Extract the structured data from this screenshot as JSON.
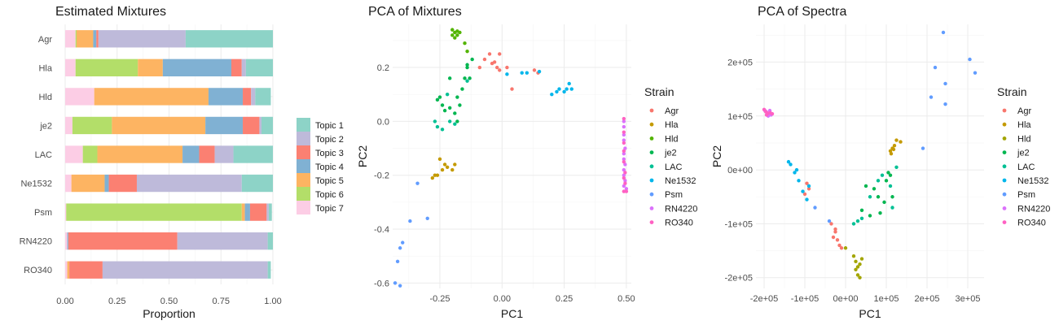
{
  "chart_data": [
    {
      "type": "bar",
      "orientation": "horizontal",
      "stacked": true,
      "title": "Estimated Mixtures",
      "xlabel": "Proportion",
      "ylabel": "",
      "xlim": [
        0,
        1
      ],
      "xticks": [
        "0.00",
        "0.25",
        "0.50",
        "0.75",
        "1.00"
      ],
      "categories": [
        "Agr",
        "Hla",
        "Hld",
        "je2",
        "LAC",
        "Ne1532",
        "Psm",
        "RN4220",
        "RO340"
      ],
      "legend_position": "right",
      "series": [
        {
          "name": "Topic 7",
          "color": "#FCCDE5",
          "values": [
            0.05,
            0.05,
            0.14,
            0.035,
            0.085,
            0.03,
            0.005,
            0.01,
            0.01
          ]
        },
        {
          "name": "Topic 6",
          "color": "#B3DE69",
          "values": [
            0.005,
            0.3,
            0.0,
            0.19,
            0.07,
            0.0,
            0.845,
            0.0,
            0.0
          ]
        },
        {
          "name": "Topic 5",
          "color": "#FDB462",
          "values": [
            0.08,
            0.12,
            0.55,
            0.45,
            0.41,
            0.16,
            0.015,
            0.0,
            0.01
          ]
        },
        {
          "name": "Topic 4",
          "color": "#80B1D3",
          "values": [
            0.015,
            0.33,
            0.165,
            0.18,
            0.08,
            0.02,
            0.025,
            0.005,
            0.0
          ]
        },
        {
          "name": "Topic 3",
          "color": "#FB8072",
          "values": [
            0.01,
            0.05,
            0.04,
            0.08,
            0.075,
            0.135,
            0.08,
            0.525,
            0.16
          ]
        },
        {
          "name": "Topic 2",
          "color": "#BEBADA",
          "values": [
            0.42,
            0.02,
            0.02,
            0.01,
            0.09,
            0.505,
            0.01,
            0.435,
            0.795
          ]
        },
        {
          "name": "Topic 1",
          "color": "#8DD3C7",
          "values": [
            0.42,
            0.13,
            0.075,
            0.055,
            0.19,
            0.15,
            0.015,
            0.025,
            0.015
          ]
        }
      ],
      "legend_order": [
        "Topic 1",
        "Topic 2",
        "Topic 3",
        "Topic 4",
        "Topic 5",
        "Topic 6",
        "Topic 7"
      ]
    },
    {
      "type": "scatter",
      "title": "PCA of Mixtures",
      "xlabel": "PC1",
      "ylabel": "PC2",
      "xlim": [
        -0.44,
        0.52
      ],
      "ylim": [
        -0.62,
        0.36
      ],
      "xticks": [
        -0.25,
        0.0,
        0.25,
        0.5
      ],
      "xtick_labels": [
        "-0.25",
        "0.00",
        "0.25",
        "0.50"
      ],
      "yticks": [
        -0.6,
        -0.4,
        -0.2,
        0.0,
        0.2
      ],
      "ytick_labels": [
        "-0.6",
        "-0.4",
        "-0.2",
        "0.0",
        "0.2"
      ],
      "grid": true,
      "legend_title": "Strain",
      "legend_position": "right",
      "series": [
        {
          "name": "Agr",
          "color": "#F8766D",
          "points": [
            [
              -0.09,
              0.2
            ],
            [
              -0.07,
              0.23
            ],
            [
              -0.05,
              0.25
            ],
            [
              -0.03,
              0.22
            ],
            [
              -0.02,
              0.2
            ],
            [
              -0.01,
              0.25
            ],
            [
              -0.04,
              0.215
            ],
            [
              0.02,
              0.2
            ],
            [
              0.04,
              0.12
            ],
            [
              0.13,
              0.19
            ],
            [
              0.145,
              0.18
            ],
            [
              -0.01,
              0.19
            ]
          ]
        },
        {
          "name": "Hla",
          "color": "#C49A00",
          "points": [
            [
              -0.19,
              -0.16
            ],
            [
              -0.22,
              -0.17
            ],
            [
              -0.24,
              -0.18
            ],
            [
              -0.25,
              -0.14
            ],
            [
              -0.27,
              -0.2
            ],
            [
              -0.28,
              -0.21
            ],
            [
              -0.23,
              -0.16
            ],
            [
              -0.2,
              -0.18
            ],
            [
              -0.26,
              -0.2
            ]
          ]
        },
        {
          "name": "Hld",
          "color": "#53B400",
          "points": [
            [
              -0.2,
              0.34
            ],
            [
              -0.19,
              0.33
            ],
            [
              -0.18,
              0.32
            ],
            [
              -0.17,
              0.33
            ],
            [
              -0.2,
              0.32
            ],
            [
              -0.19,
              0.31
            ],
            [
              -0.15,
              0.29
            ],
            [
              -0.14,
              0.26
            ],
            [
              -0.18,
              0.335
            ]
          ]
        },
        {
          "name": "je2",
          "color": "#00B650",
          "points": [
            [
              -0.25,
              0.09
            ],
            [
              -0.24,
              0.06
            ],
            [
              -0.23,
              0.04
            ],
            [
              -0.26,
              0.08
            ],
            [
              -0.21,
              0.05
            ],
            [
              -0.19,
              0.03
            ],
            [
              -0.17,
              0.06
            ],
            [
              -0.15,
              0.16
            ],
            [
              -0.13,
              0.16
            ],
            [
              -0.16,
              0.12
            ],
            [
              -0.14,
              0.21
            ],
            [
              -0.12,
              0.23
            ],
            [
              -0.21,
              0.16
            ],
            [
              -0.18,
              0.0
            ],
            [
              -0.18,
              0.09
            ],
            [
              -0.14,
              0.2
            ]
          ]
        },
        {
          "name": "LAC",
          "color": "#00C094",
          "points": [
            [
              -0.27,
              0.0
            ],
            [
              -0.26,
              -0.02
            ],
            [
              -0.24,
              -0.03
            ],
            [
              -0.21,
              0.0
            ],
            [
              -0.19,
              -0.01
            ],
            [
              -0.14,
              0.15
            ],
            [
              -0.22,
              0.1
            ]
          ]
        },
        {
          "name": "Ne1532",
          "color": "#00B6EB",
          "points": [
            [
              0.2,
              0.1
            ],
            [
              0.22,
              0.11
            ],
            [
              0.23,
              0.12
            ],
            [
              0.25,
              0.11
            ],
            [
              0.26,
              0.12
            ],
            [
              0.27,
              0.14
            ],
            [
              0.28,
              0.12
            ],
            [
              0.1,
              0.18
            ],
            [
              0.15,
              0.185
            ],
            [
              0.08,
              0.18
            ],
            [
              0.02,
              0.175
            ]
          ]
        },
        {
          "name": "Psm",
          "color": "#619CFF",
          "points": [
            [
              -0.34,
              -0.23
            ],
            [
              -0.37,
              -0.37
            ],
            [
              -0.3,
              -0.36
            ],
            [
              -0.4,
              -0.45
            ],
            [
              -0.41,
              -0.47
            ],
            [
              -0.42,
              -0.52
            ],
            [
              -0.43,
              -0.6
            ],
            [
              -0.41,
              -0.61
            ]
          ]
        },
        {
          "name": "RN4220",
          "color": "#DB72FB",
          "points": [
            [
              0.49,
              0.0
            ],
            [
              0.49,
              -0.02
            ],
            [
              0.49,
              -0.05
            ],
            [
              0.49,
              -0.07
            ],
            [
              0.495,
              -0.1
            ],
            [
              0.49,
              -0.12
            ],
            [
              0.49,
              -0.14
            ],
            [
              0.495,
              -0.16
            ],
            [
              0.49,
              -0.18
            ],
            [
              0.49,
              -0.2
            ],
            [
              0.495,
              -0.22
            ],
            [
              0.49,
              -0.24
            ],
            [
              0.5,
              -0.25
            ]
          ]
        },
        {
          "name": "RO340",
          "color": "#FF61C3",
          "points": [
            [
              0.49,
              0.01
            ],
            [
              0.49,
              -0.04
            ],
            [
              0.49,
              -0.08
            ],
            [
              0.49,
              -0.11
            ],
            [
              0.49,
              -0.15
            ],
            [
              0.495,
              -0.19
            ],
            [
              0.49,
              -0.21
            ],
            [
              0.495,
              -0.23
            ],
            [
              0.49,
              -0.26
            ],
            [
              0.5,
              -0.26
            ]
          ]
        }
      ]
    },
    {
      "type": "scatter",
      "title": "PCA of Spectra",
      "xlabel": "PC1",
      "ylabel": "PC2",
      "xlim": [
        -220000,
        340000
      ],
      "ylim": [
        -220000,
        270000
      ],
      "xticks": [
        -200000,
        -100000,
        0,
        100000,
        200000,
        300000
      ],
      "xtick_labels": [
        "-2e+05",
        "-1e+05",
        "0e+00",
        "1e+05",
        "2e+05",
        "3e+05"
      ],
      "yticks": [
        -200000,
        -100000,
        0,
        100000,
        200000
      ],
      "ytick_labels": [
        "-2e+05",
        "-1e+05",
        "0e+00",
        "1e+05",
        "2e+05"
      ],
      "grid": true,
      "legend_title": "Strain",
      "legend_position": "right",
      "series": [
        {
          "name": "Agr",
          "color": "#F8766D",
          "points": [
            [
              -30000,
              -125000
            ],
            [
              -25000,
              -115000
            ],
            [
              -20000,
              -130000
            ],
            [
              -15000,
              -140000
            ],
            [
              -10000,
              -145000
            ],
            [
              -35000,
              -100000
            ],
            [
              -25000,
              -110000
            ],
            [
              -95000,
              -25000
            ],
            [
              -90000,
              -35000
            ],
            [
              -100000,
              -45000
            ]
          ]
        },
        {
          "name": "Hla",
          "color": "#C49A00",
          "points": [
            [
              110000,
              35000
            ],
            [
              115000,
              40000
            ],
            [
              120000,
              45000
            ],
            [
              125000,
              55000
            ],
            [
              135000,
              52000
            ],
            [
              112000,
              30000
            ],
            [
              118000,
              38000
            ]
          ]
        },
        {
          "name": "Hld",
          "color": "#A3A500",
          "points": [
            [
              20000,
              -160000
            ],
            [
              25000,
              -170000
            ],
            [
              30000,
              -180000
            ],
            [
              35000,
              -175000
            ],
            [
              30000,
              -195000
            ],
            [
              25000,
              -185000
            ],
            [
              40000,
              -165000
            ],
            [
              0,
              -145000
            ],
            [
              35000,
              -200000
            ]
          ]
        },
        {
          "name": "je2",
          "color": "#00B650",
          "points": [
            [
              40000,
              -75000
            ],
            [
              50000,
              -30000
            ],
            [
              70000,
              -35000
            ],
            [
              80000,
              -50000
            ],
            [
              95000,
              -60000
            ],
            [
              100000,
              -20000
            ],
            [
              105000,
              -5000
            ],
            [
              110000,
              -10000
            ],
            [
              85000,
              -80000
            ],
            [
              60000,
              -85000
            ],
            [
              115000,
              -50000
            ]
          ]
        },
        {
          "name": "LAC",
          "color": "#00C094",
          "points": [
            [
              20000,
              -100000
            ],
            [
              30000,
              -95000
            ],
            [
              60000,
              -50000
            ],
            [
              80000,
              -20000
            ],
            [
              90000,
              -10000
            ],
            [
              115000,
              -70000
            ],
            [
              125000,
              5000
            ],
            [
              40000,
              -90000
            ],
            [
              110000,
              -30000
            ]
          ]
        },
        {
          "name": "Ne1532",
          "color": "#00B6EB",
          "points": [
            [
              -140000,
              15000
            ],
            [
              -135000,
              10000
            ],
            [
              -125000,
              -5000
            ],
            [
              -115000,
              -20000
            ],
            [
              -105000,
              -40000
            ],
            [
              -95000,
              -55000
            ],
            [
              -90000,
              -30000
            ],
            [
              -120000,
              0
            ]
          ]
        },
        {
          "name": "Psm",
          "color": "#619CFF",
          "points": [
            [
              190000,
              40000
            ],
            [
              210000,
              135000
            ],
            [
              220000,
              190000
            ],
            [
              240000,
              255000
            ],
            [
              245000,
              160000
            ],
            [
              245000,
              122000
            ],
            [
              305000,
              205000
            ],
            [
              318000,
              180000
            ],
            [
              -75000,
              -70000
            ],
            [
              -40000,
              -95000
            ]
          ]
        },
        {
          "name": "RN4220",
          "color": "#DB72FB",
          "points": [
            [
              -198000,
              110000
            ],
            [
              -193000,
              106000
            ],
            [
              -188000,
              104000
            ],
            [
              -183000,
              102000
            ],
            [
              -195000,
              108000
            ],
            [
              -186000,
              110000
            ],
            [
              -190000,
              100000
            ]
          ]
        },
        {
          "name": "RO340",
          "color": "#FF61C3",
          "points": [
            [
              -200000,
              112000
            ],
            [
              -196000,
              108000
            ],
            [
              -191000,
              105000
            ],
            [
              -185000,
              106000
            ],
            [
              -180000,
              104000
            ],
            [
              -194000,
              102000
            ]
          ]
        }
      ]
    }
  ]
}
